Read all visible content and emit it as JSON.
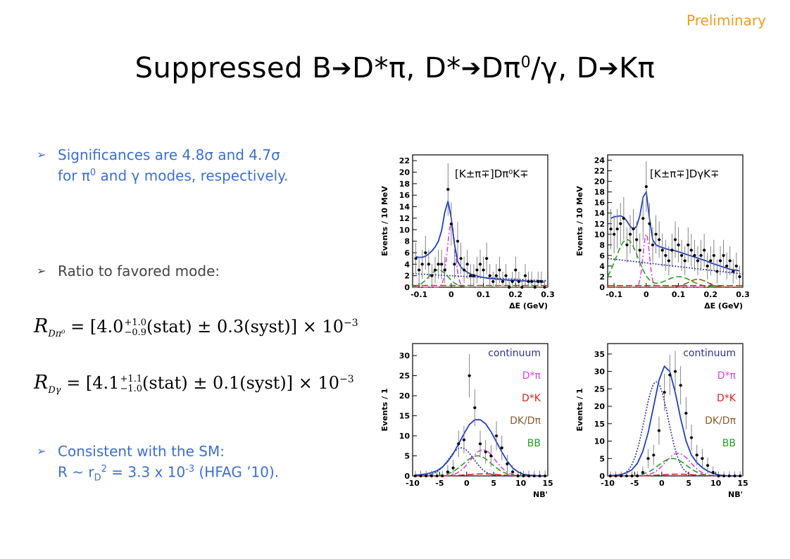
{
  "preliminary": "Preliminary",
  "title": {
    "part1": "Suppressed B",
    "part2": "D*π, D*",
    "part3": "Dπ",
    "part3_sup": "0",
    "part4": "/γ, D",
    "part5": "Kπ"
  },
  "bullets": {
    "b1_line1": "Significances are 4.8σ and 4.7σ",
    "b1_line2_a": "for π",
    "b1_line2_sup": "0",
    "b1_line2_b": " and γ modes, respectively.",
    "b2": "Ratio to favored mode:",
    "b3_line1": "Consistent with the SM:",
    "b3_line2_a": "R ~ r",
    "b3_line2_sub": "D",
    "b3_line2_sup": "2",
    "b3_line2_b": " = 3.3 x 10",
    "b3_line2_sup2": "-3",
    "b3_line2_c": " (HFAG ’10)."
  },
  "equations": {
    "eq1": {
      "sym": "R",
      "sub": "Dπ⁰",
      "mid": "= [4.0",
      "up": "+1.0",
      "down": "−0.9",
      "rest": "(stat) ± 0.3(syst)] × 10",
      "exp": "−3"
    },
    "eq2": {
      "sym": "R",
      "sub": "Dγ",
      "mid": "= [4.1",
      "up": "+1.1",
      "down": "−1.0",
      "rest": "(stat) ± 0.1(syst)] × 10",
      "exp": "−3"
    }
  },
  "colors": {
    "accent_blue": "#3b6fd4",
    "preliminary": "#f39c1a",
    "fit_total": "#1f3fc4",
    "dstarpi": "#e040e0",
    "dstark": "#e02020",
    "dk_dpi": "#8b5a2b",
    "bb": "#20a020",
    "continuum": "#3030a0"
  },
  "legend": {
    "continuum": "continuum",
    "dstarpi": "D*π",
    "dstark": "D*K",
    "dkdpi": "DK/Dπ",
    "bb": "BB"
  },
  "chart_data": [
    {
      "type": "scatter",
      "panel_label": "[K±π∓]Dπ⁰K∓",
      "xlabel": "ΔE (GeV)",
      "ylabel": "Events / 10 MeV",
      "xlim": [
        -0.12,
        0.3
      ],
      "ylim": [
        0,
        23
      ],
      "xticks": [
        "-0.1",
        "0",
        "0.1",
        "0.2",
        "0.3"
      ],
      "yticks": [
        "0",
        "2",
        "4",
        "6",
        "8",
        "10",
        "12",
        "14",
        "16",
        "18",
        "20",
        "22"
      ],
      "x": [
        -0.11,
        -0.1,
        -0.09,
        -0.08,
        -0.07,
        -0.06,
        -0.05,
        -0.04,
        -0.03,
        -0.02,
        -0.01,
        0.0,
        0.01,
        0.02,
        0.03,
        0.04,
        0.05,
        0.06,
        0.07,
        0.08,
        0.09,
        0.1,
        0.11,
        0.12,
        0.13,
        0.14,
        0.15,
        0.16,
        0.17,
        0.18,
        0.19,
        0.2,
        0.21,
        0.22,
        0.23,
        0.24,
        0.25,
        0.26,
        0.27,
        0.28,
        0.29
      ],
      "y": [
        5,
        3,
        4,
        6,
        4,
        2,
        3,
        4,
        4,
        3,
        17,
        11,
        4,
        8,
        5,
        3,
        4,
        2,
        2,
        3,
        4,
        3,
        5,
        2,
        1,
        2,
        3,
        1,
        2,
        0,
        1,
        3,
        1,
        0,
        2,
        1,
        1,
        0,
        1,
        1,
        0
      ],
      "series_total": [
        5.3,
        5.2,
        5.2,
        5.4,
        5.8,
        6.3,
        7.0,
        8.0,
        9.8,
        13.0,
        15.0,
        12.0,
        7.5,
        4.5,
        3.5,
        3.0,
        2.6,
        2.3,
        2.1,
        2.0,
        1.8,
        1.7,
        1.6,
        1.5,
        1.5,
        1.4,
        1.4,
        1.3,
        1.3,
        1.2,
        1.2,
        1.2,
        1.1,
        1.1,
        1.1,
        1.0,
        1.0,
        1.0,
        0.9,
        0.9,
        0.9
      ]
    },
    {
      "type": "scatter",
      "panel_label": "[K±π∓]DγK∓",
      "xlabel": "ΔE (GeV)",
      "ylabel": "Events / 10 MeV",
      "xlim": [
        -0.12,
        0.3
      ],
      "ylim": [
        0,
        25
      ],
      "xticks": [
        "-0.1",
        "0",
        "0.1",
        "0.2",
        "0.3"
      ],
      "yticks": [
        "0",
        "2",
        "4",
        "6",
        "8",
        "10",
        "12",
        "14",
        "16",
        "18",
        "20",
        "22",
        "24"
      ],
      "x": [
        -0.11,
        -0.1,
        -0.09,
        -0.08,
        -0.07,
        -0.06,
        -0.05,
        -0.04,
        -0.03,
        -0.02,
        -0.01,
        0.0,
        0.01,
        0.02,
        0.03,
        0.04,
        0.05,
        0.06,
        0.07,
        0.08,
        0.09,
        0.1,
        0.11,
        0.12,
        0.13,
        0.14,
        0.15,
        0.16,
        0.17,
        0.18,
        0.19,
        0.2,
        0.21,
        0.22,
        0.23,
        0.24,
        0.25,
        0.26,
        0.27,
        0.28,
        0.29
      ],
      "y": [
        11,
        10,
        11,
        12,
        13,
        8,
        10,
        11,
        9,
        7,
        13,
        19,
        12,
        8,
        10,
        9,
        7,
        6,
        5,
        7,
        9,
        8,
        6,
        5,
        8,
        7,
        6,
        5,
        6,
        7,
        4,
        5,
        6,
        3,
        5,
        6,
        4,
        5,
        3,
        4,
        2
      ],
      "series_total": [
        13.0,
        13.3,
        13.4,
        13.5,
        13.2,
        12.5,
        11.5,
        11.0,
        11.5,
        13.5,
        17.0,
        18.0,
        13.0,
        9.0,
        8.0,
        7.7,
        7.5,
        7.3,
        7.1,
        7.0,
        6.9,
        6.7,
        6.5,
        6.3,
        6.1,
        5.9,
        5.7,
        5.5,
        5.3,
        5.1,
        4.9,
        4.6,
        4.4,
        4.2,
        4.0,
        3.8,
        3.6,
        3.4,
        3.3,
        3.2,
        3.1
      ]
    },
    {
      "type": "scatter",
      "xlabel": "NB'",
      "ylabel": "Events / 1",
      "xlim": [
        -10,
        15
      ],
      "ylim": [
        0,
        33
      ],
      "xticks": [
        "-10",
        "-5",
        "0",
        "5",
        "10",
        "15"
      ],
      "yticks": [
        "0",
        "5",
        "10",
        "15",
        "20",
        "25",
        "30"
      ],
      "x": [
        -9.5,
        -8.5,
        -7.5,
        -6.5,
        -5.5,
        -4.5,
        -3.5,
        -2.5,
        -1.5,
        -0.5,
        0.5,
        1.5,
        2.5,
        3.5,
        4.5,
        5.5,
        6.5,
        7.5,
        8.5,
        9.5,
        10.5,
        11.5,
        12.5,
        13.5,
        14.5
      ],
      "y": [
        0,
        0,
        0,
        0,
        0,
        0,
        1,
        2,
        8,
        9,
        25,
        17,
        8,
        6,
        5,
        10,
        7,
        3,
        1,
        0,
        0,
        0,
        0,
        0,
        0
      ],
      "series_total": [
        0.2,
        0.3,
        0.5,
        0.8,
        1.3,
        2.2,
        3.6,
        5.5,
        8.0,
        10.5,
        12.8,
        14.0,
        14.0,
        13.0,
        11.0,
        8.5,
        6.0,
        3.7,
        2.0,
        1.0,
        0.4,
        0.2,
        0.1,
        0.0,
        0.0
      ]
    },
    {
      "type": "scatter",
      "xlabel": "NB'",
      "ylabel": "Events / 1",
      "xlim": [
        -10,
        15
      ],
      "ylim": [
        0,
        38
      ],
      "xticks": [
        "-10",
        "-5",
        "0",
        "5",
        "10",
        "15"
      ],
      "yticks": [
        "0",
        "5",
        "10",
        "15",
        "20",
        "25",
        "30",
        "35"
      ],
      "x": [
        -9.5,
        -8.5,
        -7.5,
        -6.5,
        -5.5,
        -4.5,
        -3.5,
        -2.5,
        -1.5,
        -0.5,
        0.5,
        1.5,
        2.5,
        3.5,
        4.5,
        5.5,
        6.5,
        7.5,
        8.5,
        9.5,
        10.5,
        11.5,
        12.5,
        13.5,
        14.5
      ],
      "y": [
        0,
        0,
        0,
        0,
        0,
        0,
        1,
        5,
        6,
        13,
        24,
        29,
        30,
        26,
        18,
        11,
        6,
        5,
        3,
        1,
        0,
        0,
        0,
        0,
        0
      ],
      "series_total": [
        0.1,
        0.2,
        0.4,
        0.9,
        1.8,
        3.6,
        7.0,
        12.5,
        20.0,
        27.5,
        31.5,
        30.0,
        24.0,
        16.5,
        10.0,
        6.0,
        3.8,
        2.4,
        1.4,
        0.7,
        0.3,
        0.1,
        0.0,
        0.0,
        0.0
      ]
    }
  ]
}
